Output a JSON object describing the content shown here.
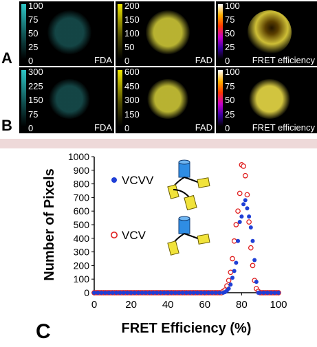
{
  "figure": {
    "row_labels": [
      "A",
      "B"
    ],
    "panel_c_label": "C",
    "rows": [
      {
        "panels": [
          {
            "label": "FDA",
            "ticks": [
              "100",
              "75",
              "50",
              "25",
              "0"
            ],
            "colormap": "cyan",
            "color": "#39c6c6"
          },
          {
            "label": "FAD",
            "ticks": [
              "200",
              "150",
              "100",
              "50",
              "0"
            ],
            "colormap": "yellow",
            "color": "#d8d23a"
          },
          {
            "label": "FRET efficiency",
            "ticks": [
              "100",
              "75",
              "50",
              "25",
              "0"
            ],
            "colormap": "fire",
            "color": "#f2e040"
          }
        ]
      },
      {
        "panels": [
          {
            "label": "FDA",
            "ticks": [
              "300",
              "225",
              "150",
              "75",
              "0"
            ],
            "colormap": "cyan",
            "color": "#39c6c6"
          },
          {
            "label": "FAD",
            "ticks": [
              "600",
              "450",
              "300",
              "150",
              "0"
            ],
            "colormap": "yellow",
            "color": "#d8d23a"
          },
          {
            "label": "FRET efficiency",
            "ticks": [
              "100",
              "75",
              "50",
              "25",
              "0"
            ],
            "colormap": "fire",
            "color": "#f6e64a"
          }
        ]
      }
    ]
  },
  "chart_data": {
    "type": "scatter",
    "xlabel": "FRET Efficiency (%)",
    "ylabel": "Number of Pixels",
    "xlim": [
      0,
      100
    ],
    "ylim": [
      0,
      1000
    ],
    "x_ticks": [
      "0",
      "20",
      "40",
      "60",
      "80",
      "100"
    ],
    "y_ticks": [
      "0",
      "100",
      "200",
      "300",
      "400",
      "500",
      "600",
      "700",
      "800",
      "900",
      "1000"
    ],
    "legend_placement": "left",
    "series": [
      {
        "name": "VCVV",
        "marker": "filled-circle",
        "color": "#1f3fd6",
        "points": [
          [
            0,
            0
          ],
          [
            2,
            0
          ],
          [
            4,
            0
          ],
          [
            6,
            0
          ],
          [
            8,
            0
          ],
          [
            10,
            0
          ],
          [
            12,
            0
          ],
          [
            14,
            0
          ],
          [
            16,
            0
          ],
          [
            18,
            0
          ],
          [
            20,
            0
          ],
          [
            22,
            0
          ],
          [
            24,
            0
          ],
          [
            26,
            0
          ],
          [
            28,
            0
          ],
          [
            30,
            0
          ],
          [
            32,
            0
          ],
          [
            34,
            0
          ],
          [
            36,
            0
          ],
          [
            38,
            0
          ],
          [
            40,
            0
          ],
          [
            42,
            0
          ],
          [
            44,
            0
          ],
          [
            46,
            0
          ],
          [
            48,
            0
          ],
          [
            50,
            0
          ],
          [
            52,
            0
          ],
          [
            54,
            0
          ],
          [
            56,
            0
          ],
          [
            58,
            0
          ],
          [
            60,
            0
          ],
          [
            62,
            0
          ],
          [
            64,
            0
          ],
          [
            66,
            0
          ],
          [
            68,
            0
          ],
          [
            70,
            0
          ],
          [
            71,
            5
          ],
          [
            72,
            15
          ],
          [
            73,
            30
          ],
          [
            74,
            60
          ],
          [
            75,
            110
          ],
          [
            76,
            160
          ],
          [
            77,
            220
          ],
          [
            78,
            380
          ],
          [
            79,
            520
          ],
          [
            80,
            560
          ],
          [
            81,
            650
          ],
          [
            82,
            680
          ],
          [
            83,
            620
          ],
          [
            84,
            560
          ],
          [
            85,
            480
          ],
          [
            86,
            380
          ],
          [
            87,
            240
          ],
          [
            88,
            80
          ],
          [
            89,
            0
          ],
          [
            90,
            0
          ],
          [
            92,
            0
          ],
          [
            94,
            0
          ],
          [
            96,
            0
          ],
          [
            98,
            0
          ],
          [
            100,
            0
          ]
        ]
      },
      {
        "name": "VCV",
        "marker": "open-circle",
        "color": "#e02020",
        "points": [
          [
            0,
            0
          ],
          [
            1,
            0
          ],
          [
            2,
            0
          ],
          [
            3,
            0
          ],
          [
            4,
            0
          ],
          [
            5,
            0
          ],
          [
            6,
            0
          ],
          [
            7,
            0
          ],
          [
            8,
            0
          ],
          [
            9,
            0
          ],
          [
            10,
            0
          ],
          [
            11,
            0
          ],
          [
            12,
            0
          ],
          [
            13,
            0
          ],
          [
            14,
            0
          ],
          [
            15,
            0
          ],
          [
            16,
            0
          ],
          [
            17,
            0
          ],
          [
            18,
            0
          ],
          [
            19,
            0
          ],
          [
            20,
            0
          ],
          [
            21,
            0
          ],
          [
            22,
            0
          ],
          [
            23,
            0
          ],
          [
            24,
            0
          ],
          [
            25,
            0
          ],
          [
            26,
            0
          ],
          [
            27,
            0
          ],
          [
            28,
            0
          ],
          [
            29,
            0
          ],
          [
            30,
            0
          ],
          [
            31,
            0
          ],
          [
            32,
            0
          ],
          [
            33,
            0
          ],
          [
            34,
            0
          ],
          [
            35,
            0
          ],
          [
            36,
            0
          ],
          [
            37,
            0
          ],
          [
            38,
            0
          ],
          [
            39,
            0
          ],
          [
            40,
            0
          ],
          [
            41,
            0
          ],
          [
            42,
            0
          ],
          [
            43,
            0
          ],
          [
            44,
            0
          ],
          [
            45,
            0
          ],
          [
            46,
            0
          ],
          [
            47,
            0
          ],
          [
            48,
            0
          ],
          [
            49,
            0
          ],
          [
            50,
            0
          ],
          [
            51,
            0
          ],
          [
            52,
            0
          ],
          [
            53,
            0
          ],
          [
            54,
            0
          ],
          [
            55,
            0
          ],
          [
            56,
            0
          ],
          [
            57,
            0
          ],
          [
            58,
            0
          ],
          [
            59,
            0
          ],
          [
            60,
            0
          ],
          [
            61,
            0
          ],
          [
            62,
            0
          ],
          [
            63,
            0
          ],
          [
            64,
            0
          ],
          [
            65,
            0
          ],
          [
            66,
            0
          ],
          [
            67,
            0
          ],
          [
            68,
            0
          ],
          [
            69,
            0
          ],
          [
            70,
            10
          ],
          [
            71,
            20
          ],
          [
            72,
            50
          ],
          [
            73,
            90
          ],
          [
            74,
            150
          ],
          [
            75,
            250
          ],
          [
            76,
            380
          ],
          [
            77,
            500
          ],
          [
            78,
            600
          ],
          [
            79,
            730
          ],
          [
            80,
            940
          ],
          [
            81,
            930
          ],
          [
            82,
            860
          ],
          [
            83,
            720
          ],
          [
            84,
            520
          ],
          [
            85,
            330
          ],
          [
            86,
            200
          ],
          [
            87,
            90
          ],
          [
            88,
            30
          ],
          [
            89,
            10
          ],
          [
            90,
            0
          ],
          [
            91,
            0
          ],
          [
            92,
            0
          ],
          [
            93,
            0
          ],
          [
            94,
            0
          ],
          [
            95,
            0
          ],
          [
            96,
            0
          ],
          [
            97,
            0
          ],
          [
            98,
            0
          ],
          [
            99,
            0
          ],
          [
            100,
            0
          ]
        ]
      }
    ]
  }
}
